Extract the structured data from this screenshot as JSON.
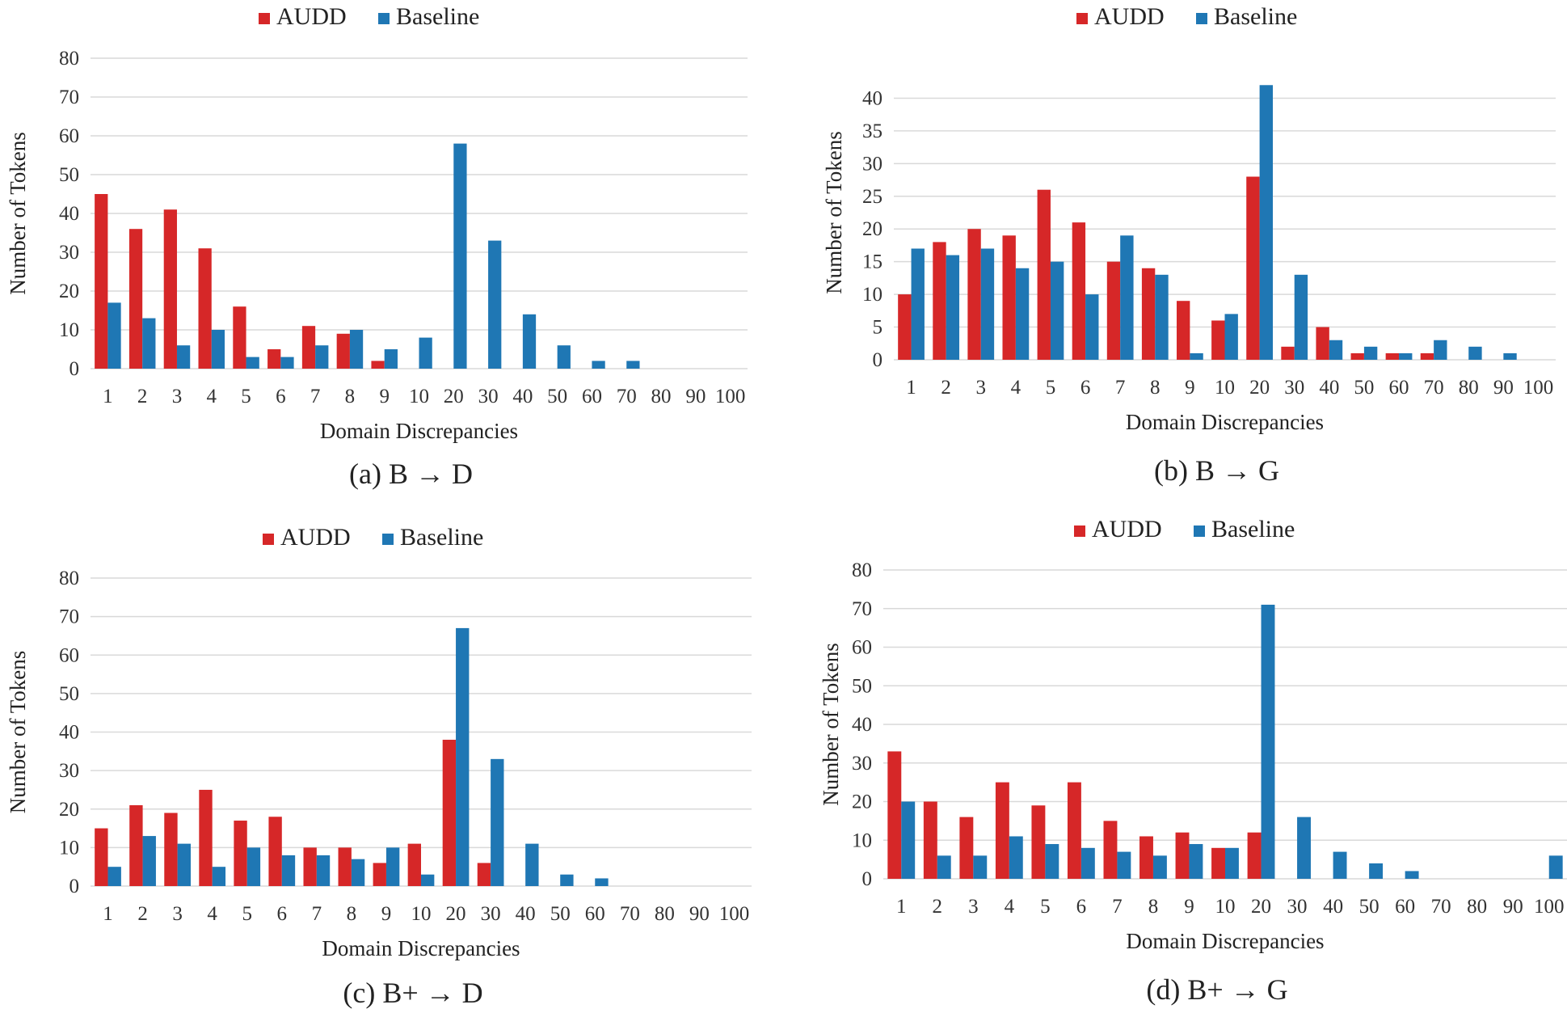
{
  "colors": {
    "AUDD": "#d62728",
    "Baseline": "#1f77b4"
  },
  "chart_data": [
    {
      "type": "bar",
      "caption": "(a) B → D",
      "legend": [
        "AUDD",
        "Baseline"
      ],
      "xlabel": "Domain Discrepancies",
      "ylabel": "Number of Tokens",
      "ylim": [
        0,
        80
      ],
      "yticks": [
        0,
        10,
        20,
        30,
        40,
        50,
        60,
        70,
        80
      ],
      "categories": [
        "1",
        "2",
        "3",
        "4",
        "5",
        "6",
        "7",
        "8",
        "9",
        "10",
        "20",
        "30",
        "40",
        "50",
        "60",
        "70",
        "80",
        "90",
        "100"
      ],
      "series": [
        {
          "name": "AUDD",
          "values": [
            45,
            36,
            41,
            31,
            16,
            5,
            11,
            9,
            2,
            0,
            0,
            0,
            0,
            0,
            0,
            0,
            0,
            0,
            0
          ]
        },
        {
          "name": "Baseline",
          "values": [
            17,
            13,
            6,
            10,
            3,
            3,
            6,
            10,
            5,
            8,
            58,
            33,
            14,
            6,
            2,
            2,
            0,
            0,
            0
          ]
        }
      ]
    },
    {
      "type": "bar",
      "caption": "(b) B → G",
      "legend": [
        "AUDD",
        "Baseline"
      ],
      "xlabel": "Domain Discrepancies",
      "ylabel": "Number of Tokens",
      "ylim": [
        0,
        45
      ],
      "yticks": [
        0,
        5,
        10,
        15,
        20,
        25,
        30,
        35,
        40
      ],
      "categories": [
        "1",
        "2",
        "3",
        "4",
        "5",
        "6",
        "7",
        "8",
        "9",
        "10",
        "20",
        "30",
        "40",
        "50",
        "60",
        "70",
        "80",
        "90",
        "100"
      ],
      "series": [
        {
          "name": "AUDD",
          "values": [
            10,
            18,
            20,
            19,
            26,
            21,
            15,
            14,
            9,
            6,
            28,
            2,
            5,
            1,
            1,
            1,
            0,
            0,
            0
          ]
        },
        {
          "name": "Baseline",
          "values": [
            17,
            16,
            17,
            14,
            15,
            10,
            19,
            13,
            1,
            7,
            42,
            13,
            3,
            2,
            1,
            3,
            2,
            1,
            0
          ]
        }
      ]
    },
    {
      "type": "bar",
      "caption": "(c) B+ → D",
      "legend": [
        "AUDD",
        "Baseline"
      ],
      "xlabel": "Domain Discrepancies",
      "ylabel": "Number of Tokens",
      "ylim": [
        0,
        80
      ],
      "yticks": [
        0,
        10,
        20,
        30,
        40,
        50,
        60,
        70,
        80
      ],
      "categories": [
        "1",
        "2",
        "3",
        "4",
        "5",
        "6",
        "7",
        "8",
        "9",
        "10",
        "20",
        "30",
        "40",
        "50",
        "60",
        "70",
        "80",
        "90",
        "100"
      ],
      "series": [
        {
          "name": "AUDD",
          "values": [
            15,
            21,
            19,
            25,
            17,
            18,
            10,
            10,
            6,
            11,
            38,
            6,
            0,
            0,
            0,
            0,
            0,
            0,
            0
          ]
        },
        {
          "name": "Baseline",
          "values": [
            5,
            13,
            11,
            5,
            10,
            8,
            8,
            7,
            10,
            3,
            67,
            33,
            11,
            3,
            2,
            0,
            0,
            0,
            0
          ]
        }
      ]
    },
    {
      "type": "bar",
      "caption": "(d) B+ → G",
      "legend": [
        "AUDD",
        "Baseline"
      ],
      "xlabel": "Domain Discrepancies",
      "ylabel": "Number of Tokens",
      "ylim": [
        0,
        80
      ],
      "yticks": [
        0,
        10,
        20,
        30,
        40,
        50,
        60,
        70,
        80
      ],
      "categories": [
        "1",
        "2",
        "3",
        "4",
        "5",
        "6",
        "7",
        "8",
        "9",
        "10",
        "20",
        "30",
        "40",
        "50",
        "60",
        "70",
        "80",
        "90",
        "100"
      ],
      "series": [
        {
          "name": "AUDD",
          "values": [
            33,
            20,
            16,
            25,
            19,
            25,
            15,
            11,
            12,
            8,
            12,
            0,
            0,
            0,
            0,
            0,
            0,
            0,
            0
          ]
        },
        {
          "name": "Baseline",
          "values": [
            20,
            6,
            6,
            11,
            9,
            8,
            7,
            6,
            9,
            8,
            71,
            16,
            7,
            4,
            2,
            0,
            0,
            0,
            6
          ]
        }
      ]
    }
  ]
}
